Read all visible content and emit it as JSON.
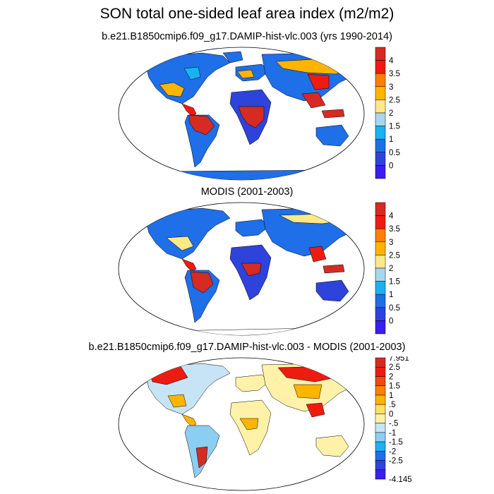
{
  "title": "SON total one-sided leaf area index (m2/m2)",
  "panels": [
    {
      "id": "model",
      "subtitle": "b.e21.B1850cmip6.f09_g17.DAMIP-hist-vlc.003 (yrs 1990-2014)",
      "colorbar": {
        "labels": [
          "4",
          "3.5",
          "3",
          "2.5",
          "2",
          "1.5",
          "1",
          "0.5",
          "0"
        ],
        "colors": [
          "#d62a22",
          "#ee1c10",
          "#ff7f00",
          "#ffb400",
          "#ffe88a",
          "#a6d7ee",
          "#19b3f0",
          "#1e6fe8",
          "#2d43dc",
          "#3a1df0"
        ]
      }
    },
    {
      "id": "modis",
      "subtitle": "MODIS (2001-2003)",
      "colorbar": {
        "labels": [
          "4",
          "3.5",
          "3",
          "2.5",
          "2",
          "1.5",
          "1",
          "0.5",
          "0"
        ],
        "colors": [
          "#d62a22",
          "#ee1c10",
          "#ff7f00",
          "#ffb400",
          "#ffe88a",
          "#a6d7ee",
          "#19b3f0",
          "#1e6fe8",
          "#2d43dc",
          "#3a1df0"
        ]
      }
    },
    {
      "id": "diff",
      "subtitle": "b.e21.B1850cmip6.f09_g17.DAMIP-hist-vlc.003 - MODIS (2001-2003)",
      "colorbar": {
        "labels": [
          "7.951",
          "2.5",
          "2",
          "1.5",
          "1",
          ".5",
          "0",
          "-.5",
          "-1",
          "-1.5",
          "-2",
          "-2.5",
          "-4.145"
        ],
        "colors": [
          "#d62a22",
          "#ee1c10",
          "#f04a10",
          "#ff7f00",
          "#ffb400",
          "#ffe060",
          "#fff2a8",
          "#c6e4f6",
          "#8ccdf2",
          "#19b3f0",
          "#1e6fe8",
          "#2d43dc",
          "#3a1df0"
        ]
      }
    }
  ]
}
